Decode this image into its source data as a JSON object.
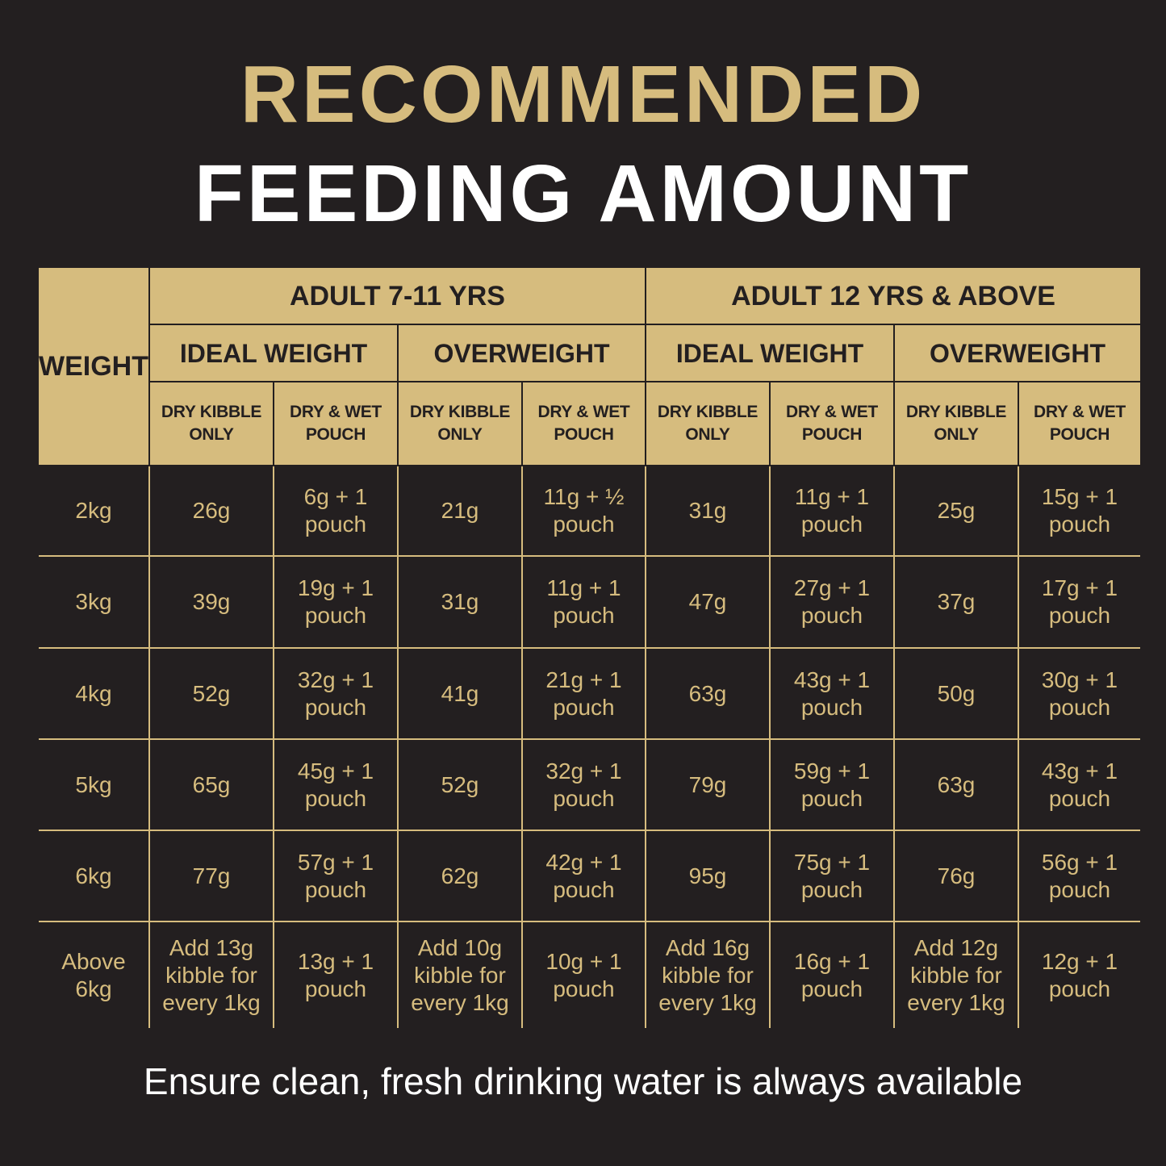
{
  "title": {
    "line1": "RECOMMENDED",
    "line2": "FEEDING AMOUNT"
  },
  "colors": {
    "background": "#231f20",
    "gold": "#d6bc7e",
    "white": "#ffffff"
  },
  "table": {
    "weight_header": "WEIGHT",
    "age_groups": [
      "ADULT 7-11 YRS",
      "ADULT 12 YRS & ABOVE"
    ],
    "conditions": [
      "IDEAL WEIGHT",
      "OVERWEIGHT",
      "IDEAL WEIGHT",
      "OVERWEIGHT"
    ],
    "feed_types": [
      "DRY KIBBLE\nONLY",
      "DRY & WET\nPOUCH",
      "DRY KIBBLE\nONLY",
      "DRY & WET\nPOUCH",
      "DRY KIBBLE\nONLY",
      "DRY & WET\nPOUCH",
      "DRY KIBBLE\nONLY",
      "DRY & WET\nPOUCH"
    ],
    "rows": [
      {
        "weight": "2kg",
        "values": [
          "26g",
          "6g + 1\npouch",
          "21g",
          "11g + ½\npouch",
          "31g",
          "11g + 1\npouch",
          "25g",
          "15g + 1\npouch"
        ]
      },
      {
        "weight": "3kg",
        "values": [
          "39g",
          "19g + 1\npouch",
          "31g",
          "11g + 1\npouch",
          "47g",
          "27g + 1\npouch",
          "37g",
          "17g + 1\npouch"
        ]
      },
      {
        "weight": "4kg",
        "values": [
          "52g",
          "32g + 1\npouch",
          "41g",
          "21g + 1\npouch",
          "63g",
          "43g + 1\npouch",
          "50g",
          "30g + 1\npouch"
        ]
      },
      {
        "weight": "5kg",
        "values": [
          "65g",
          "45g + 1\npouch",
          "52g",
          "32g + 1\npouch",
          "79g",
          "59g + 1\npouch",
          "63g",
          "43g + 1\npouch"
        ]
      },
      {
        "weight": "6kg",
        "values": [
          "77g",
          "57g + 1\npouch",
          "62g",
          "42g + 1\npouch",
          "95g",
          "75g + 1\npouch",
          "76g",
          "56g + 1\npouch"
        ]
      },
      {
        "weight": "Above\n6kg",
        "values": [
          "Add 13g\nkibble for\nevery 1kg",
          "13g + 1\npouch",
          "Add 10g\nkibble for\nevery 1kg",
          "10g + 1\npouch",
          "Add 16g\nkibble for\nevery 1kg",
          "16g + 1\npouch",
          "Add 12g\nkibble for\nevery 1kg",
          "12g + 1\npouch"
        ]
      }
    ]
  },
  "footer": "Ensure clean, fresh drinking water is always available"
}
